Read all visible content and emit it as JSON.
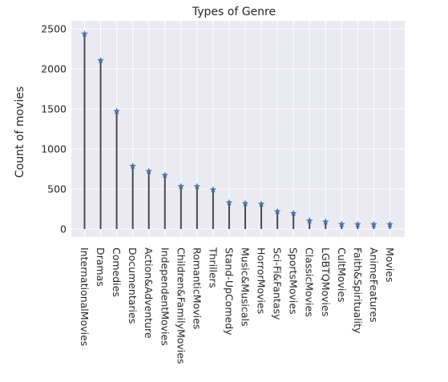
{
  "chart_data": {
    "type": "stem",
    "title": "Types of Genre",
    "xlabel": "",
    "ylabel": "Count of movies",
    "ylim": [
      -100,
      2600
    ],
    "yticks": [
      0,
      500,
      1000,
      1500,
      2000,
      2500
    ],
    "grid": true,
    "colors": {
      "background": "#eaeaf2",
      "stem": "#4a4a4a",
      "marker": "#4c72b0",
      "grid": "#ffffff"
    },
    "marker": "star",
    "categories": [
      "InternationalMovies",
      "Dramas",
      "Comedies",
      "Documentaries",
      "Action&Adventure",
      "IndependentMovies",
      "Children&FamilyMovies",
      "RomanticMovies",
      "Thrillers",
      "Stand-UpComedy",
      "Music&Musicals",
      "HorrorMovies",
      "Sci-Fi&Fantasy",
      "SportsMovies",
      "ClassicMovies",
      "LGBTQMovies",
      "CultMovies",
      "Faith&Spirituality",
      "AnimeFeatures",
      "Movies"
    ],
    "values": [
      2437,
      2106,
      1471,
      786,
      721,
      673,
      532,
      531,
      491,
      329,
      320,
      312,
      218,
      196,
      103,
      90,
      59,
      57,
      57,
      57
    ]
  }
}
